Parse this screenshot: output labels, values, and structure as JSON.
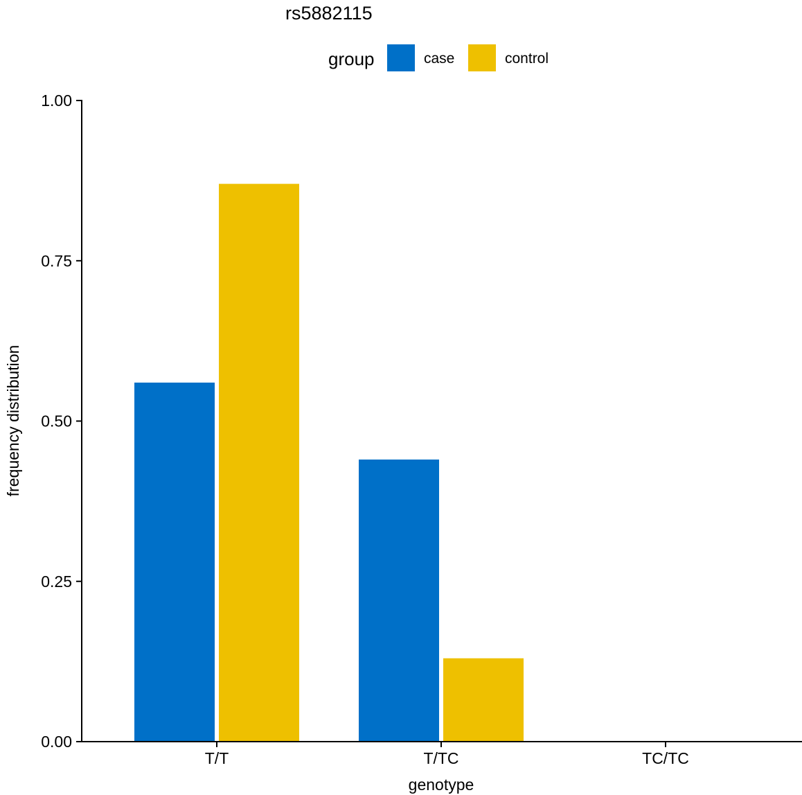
{
  "chart_data": {
    "type": "bar",
    "title": "rs5882115",
    "legend": {
      "title": "group",
      "position": "top"
    },
    "categories": [
      "T/T",
      "T/TC",
      "TC/TC"
    ],
    "series": [
      {
        "name": "case",
        "color": "#0070C8",
        "values": [
          0.56,
          0.44,
          0.0
        ]
      },
      {
        "name": "control",
        "color": "#EEC000",
        "values": [
          0.87,
          0.13,
          0.0
        ]
      }
    ],
    "xlabel": "genotype",
    "ylabel": "frequency  distribution",
    "ylim": [
      0,
      1
    ],
    "yticks": [
      "0.00",
      "0.25",
      "0.50",
      "0.75",
      "1.00"
    ],
    "grid": false
  }
}
